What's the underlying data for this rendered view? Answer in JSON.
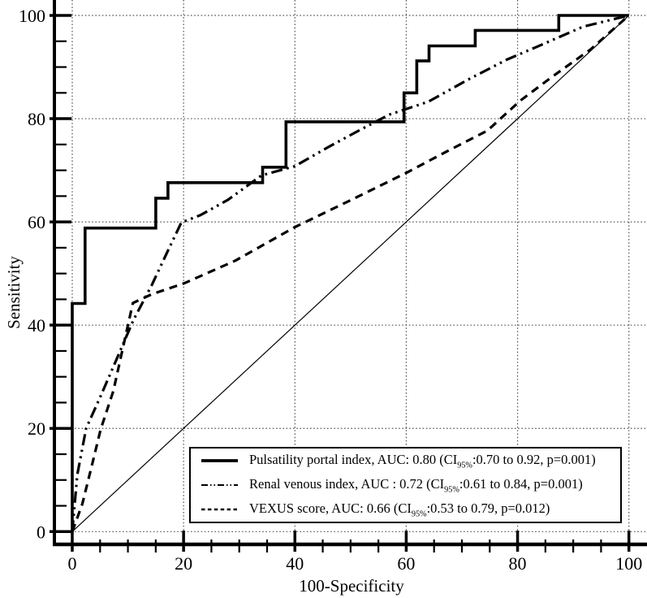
{
  "figure": {
    "background_color": "#ffffff",
    "line_color": "#000000",
    "grid_color": "#555555"
  },
  "chart_data": {
    "type": "line",
    "subtype": "roc-curves",
    "title": "",
    "xlabel": "100-Specificity",
    "ylabel": "Sensitivity",
    "xlim": [
      0,
      100
    ],
    "ylim": [
      0,
      100
    ],
    "x_major_ticks": [
      0,
      20,
      40,
      60,
      80,
      100
    ],
    "y_major_ticks": [
      0,
      20,
      40,
      60,
      80,
      100
    ],
    "minor_tick_step": 5,
    "grid": "dotted-at-major-ticks",
    "legend_position": "bottom-right-inside",
    "series": [
      {
        "name": "Pulsatility portal index",
        "line_style": "solid",
        "auc": 0.8,
        "ci_low": 0.7,
        "ci_high": 0.92,
        "p": "0.001",
        "points": [
          [
            0,
            0
          ],
          [
            0,
            44.2
          ],
          [
            2.3,
            44.2
          ],
          [
            2.3,
            58.8
          ],
          [
            15,
            58.8
          ],
          [
            15,
            64.6
          ],
          [
            17.2,
            64.6
          ],
          [
            17.2,
            67.6
          ],
          [
            34.2,
            67.6
          ],
          [
            34.2,
            70.6
          ],
          [
            38.4,
            70.6
          ],
          [
            38.4,
            79.4
          ],
          [
            59.6,
            79.4
          ],
          [
            59.6,
            85
          ],
          [
            61.9,
            85
          ],
          [
            61.9,
            91.2
          ],
          [
            64.1,
            91.2
          ],
          [
            64.1,
            94.1
          ],
          [
            72.4,
            94.1
          ],
          [
            72.4,
            97.1
          ],
          [
            87.4,
            97.1
          ],
          [
            87.4,
            100
          ],
          [
            100,
            100
          ]
        ]
      },
      {
        "name": "Renal venous index",
        "line_style": "dash-dot-dot",
        "auc": 0.72,
        "ci_low": 0.61,
        "ci_high": 0.84,
        "p": "0.001",
        "points": [
          [
            0,
            0
          ],
          [
            0.9,
            11
          ],
          [
            2.5,
            20
          ],
          [
            5,
            26
          ],
          [
            8,
            33.5
          ],
          [
            11,
            41
          ],
          [
            14.3,
            47.8
          ],
          [
            17,
            54
          ],
          [
            19.6,
            59.9
          ],
          [
            23,
            61.3
          ],
          [
            28,
            64.3
          ],
          [
            34,
            69
          ],
          [
            40,
            70.8
          ],
          [
            46,
            74.5
          ],
          [
            52,
            78
          ],
          [
            57,
            80.8
          ],
          [
            64,
            83.3
          ],
          [
            71,
            87.5
          ],
          [
            78,
            91.4
          ],
          [
            83.4,
            93.9
          ],
          [
            91.7,
            97.8
          ],
          [
            100,
            100
          ]
        ]
      },
      {
        "name": "VEXUS score",
        "line_style": "dashed",
        "auc": 0.66,
        "ci_low": 0.53,
        "ci_high": 0.79,
        "p": "0.012",
        "points": [
          [
            0,
            0
          ],
          [
            1.8,
            5.3
          ],
          [
            3.5,
            12.7
          ],
          [
            5.1,
            19.8
          ],
          [
            7.4,
            27.3
          ],
          [
            9.9,
            39.5
          ],
          [
            10.9,
            44.3
          ],
          [
            14.3,
            46
          ],
          [
            20.1,
            48.1
          ],
          [
            29.3,
            52.5
          ],
          [
            40,
            59
          ],
          [
            50,
            64.2
          ],
          [
            60,
            69.5
          ],
          [
            67,
            73.5
          ],
          [
            74.6,
            77.7
          ],
          [
            80.5,
            83.5
          ],
          [
            86.3,
            88.2
          ],
          [
            93.1,
            93.4
          ],
          [
            100,
            100
          ]
        ]
      },
      {
        "name": "Reference diagonal",
        "line_style": "thin-solid",
        "points": [
          [
            0,
            0
          ],
          [
            100,
            100
          ]
        ]
      }
    ]
  },
  "legend": {
    "items": [
      {
        "text_before_sub": "Pulsatility portal index, AUC: 0.80 (CI",
        "subscript": "95%",
        "text_after_sub": ":0.70 to 0.92, p=0.001)"
      },
      {
        "text_before_sub": "Renal venous index, AUC : 0.72 (CI",
        "subscript": "95%",
        "text_after_sub": ":0.61 to 0.84, p=0.001)"
      },
      {
        "text_before_sub": "VEXUS score, AUC: 0.66 (CI",
        "subscript": "95%",
        "text_after_sub": ":0.53 to 0.79, p=0.012)"
      }
    ]
  }
}
